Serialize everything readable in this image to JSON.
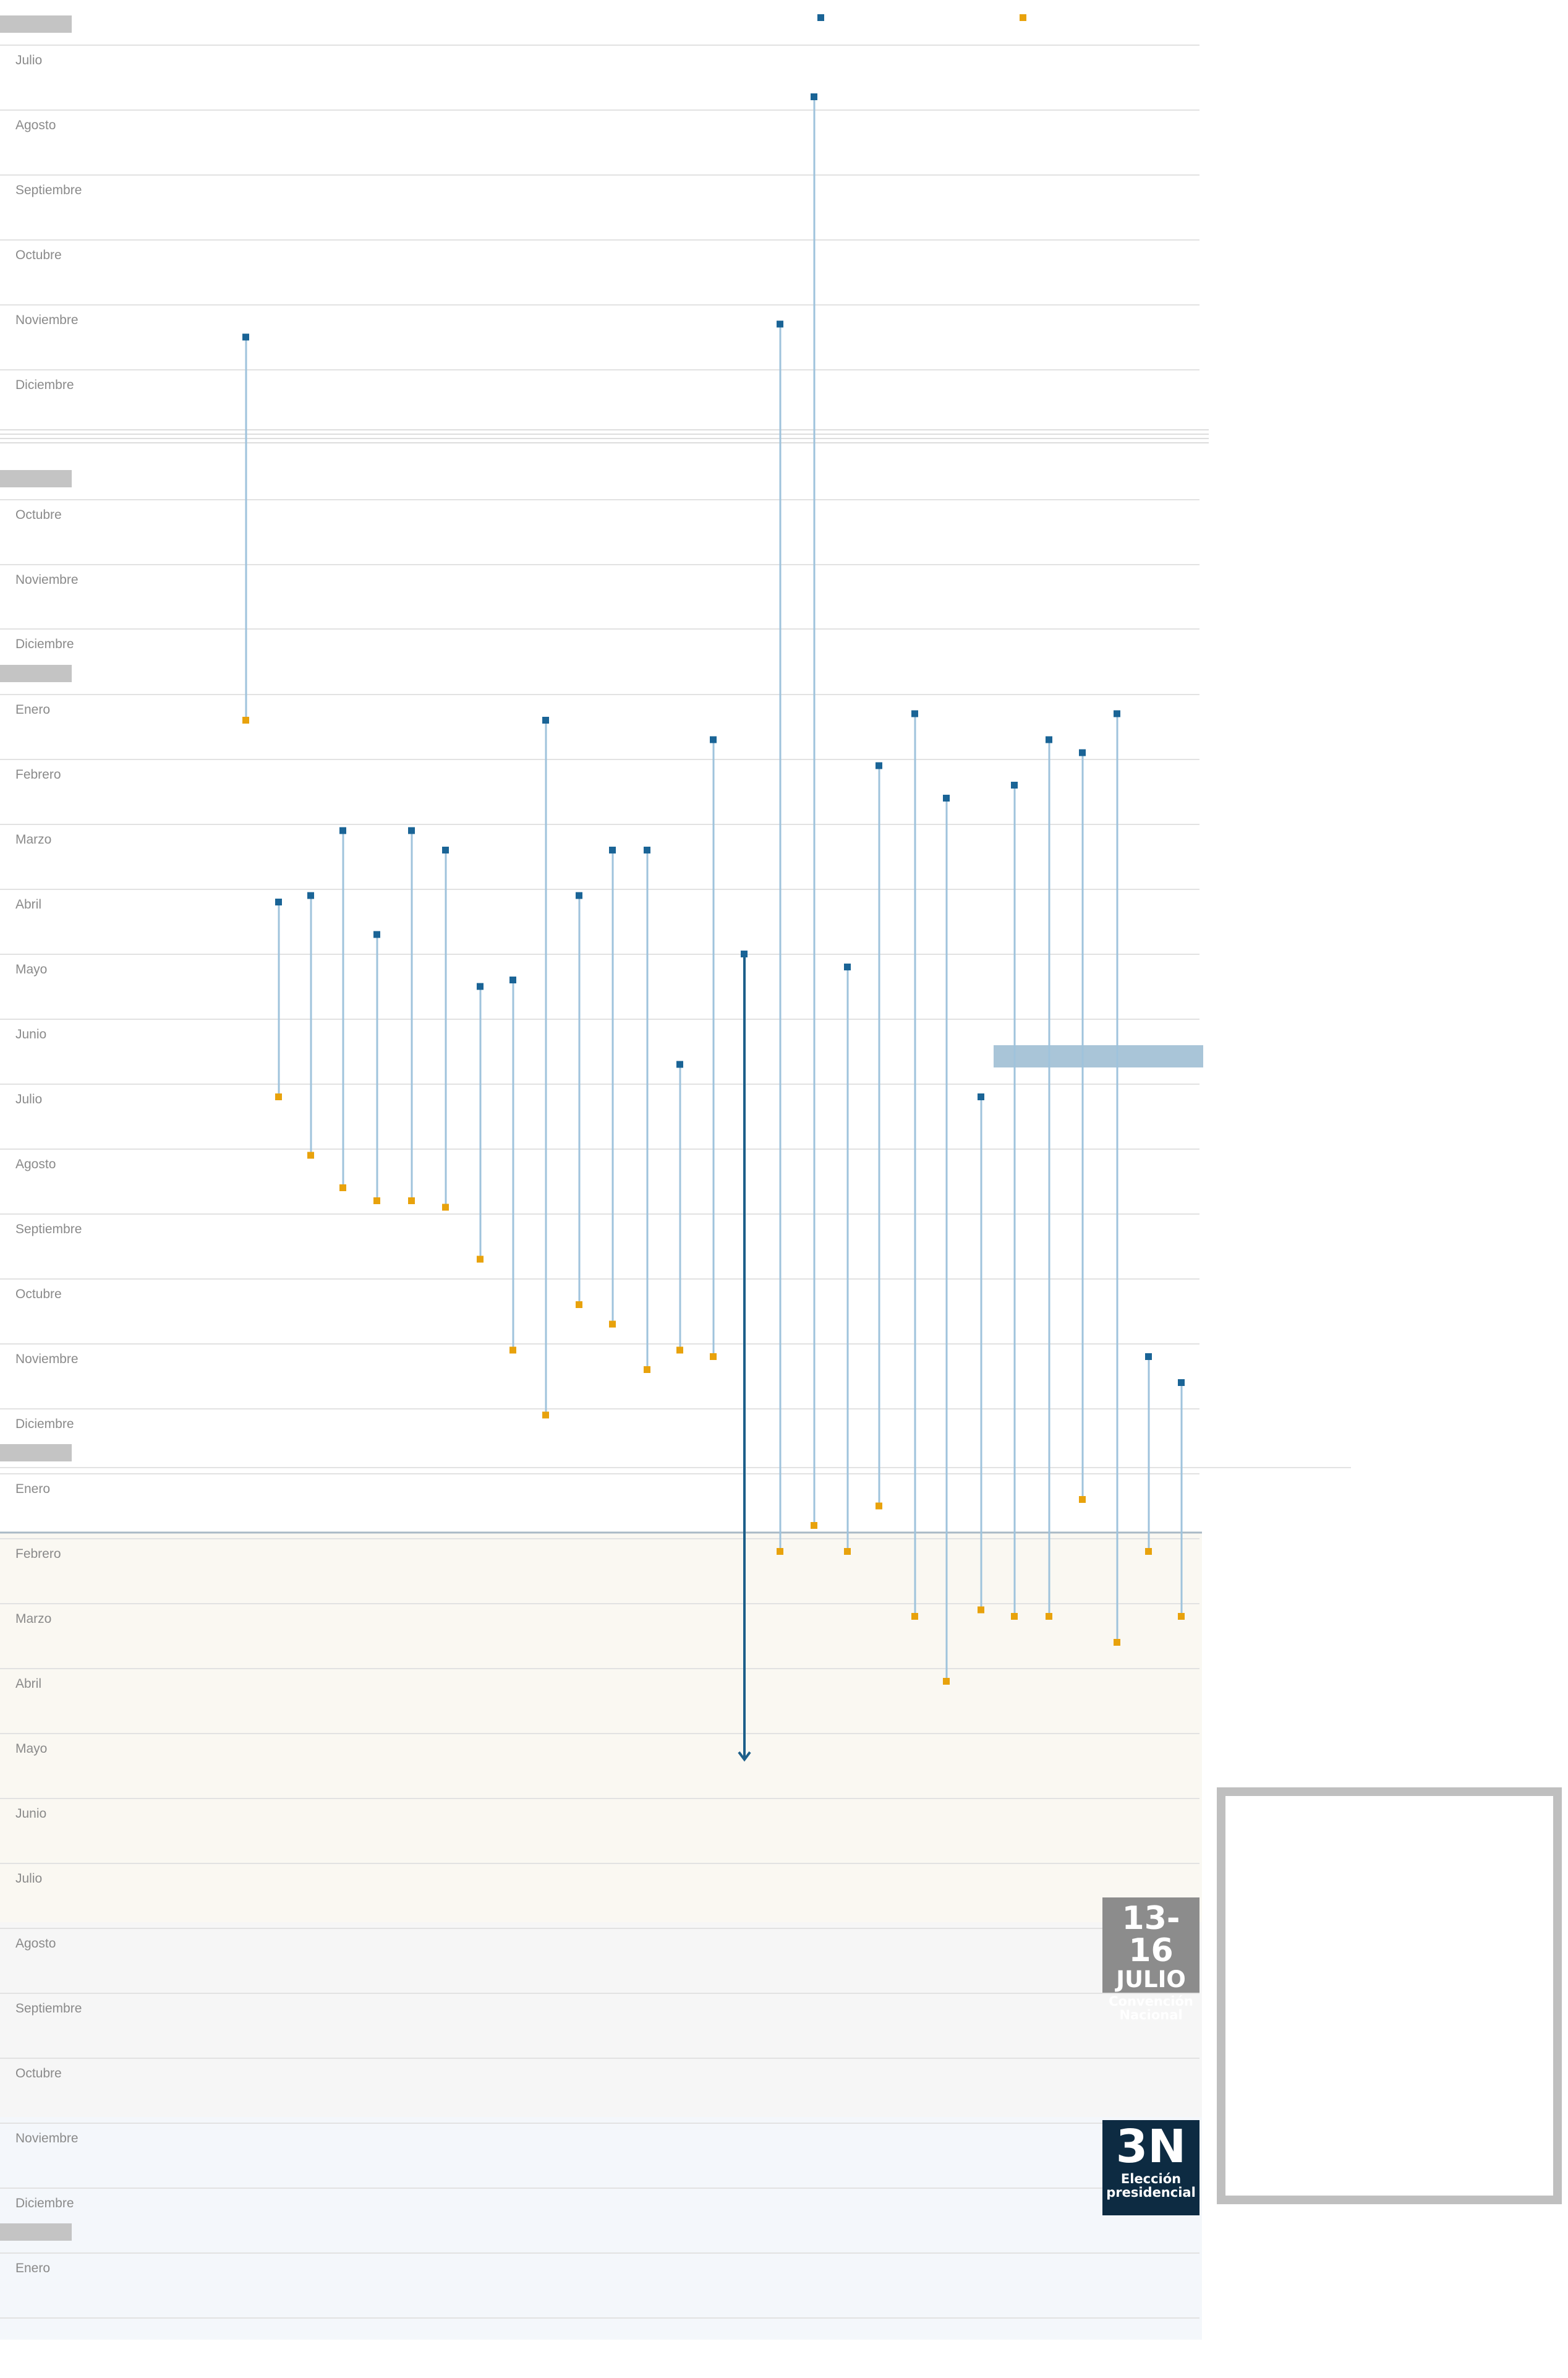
{
  "colors": {
    "announce": "#1a6496",
    "withdraw": "#e8a20c",
    "stem": "#9fc3dc",
    "stem_active": "#1d5f8a",
    "grid": "#e2e2e2",
    "year_tab": "#c4c4c4",
    "highlight_bar": "#a9c5d8",
    "primary_band": "#faf8f2",
    "late_band": "#f6f6f6",
    "final_band": "#f4f7fb"
  },
  "top_legend": [
    {
      "symbol": "square",
      "color": "#1a6496"
    },
    {
      "symbol": "square",
      "color": "#e8a20c"
    }
  ],
  "month_rows": [
    "Julio",
    "Agosto",
    "Septiembre",
    "Octubre",
    "Noviembre",
    "Diciembre",
    "Octubre",
    "Noviembre",
    "Diciembre",
    "Enero",
    "Febrero",
    "Marzo",
    "Abril",
    "Mayo",
    "Junio",
    "Julio",
    "Agosto",
    "Septiembre",
    "Octubre",
    "Noviembre",
    "Diciembre",
    "Enero",
    "Febrero",
    "Marzo",
    "Abril",
    "Mayo",
    "Junio",
    "Julio",
    "Agosto",
    "Septiembre",
    "Octubre",
    "Noviembre",
    "Diciembre",
    "Enero"
  ],
  "events": {
    "convention": {
      "dates": "13-16",
      "month": "JULIO",
      "label": "Convención Nacional"
    },
    "election": {
      "code": "3N",
      "label": "Elección presidencial"
    }
  },
  "chart_data": {
    "type": "timeline",
    "y_axis": "month rows (index into month_rows, fractional positions within a month)",
    "series": [
      {
        "name": "",
        "marker": "square",
        "color": "#1a6496"
      },
      {
        "name": "",
        "marker": "square",
        "color": "#e8a20c"
      }
    ],
    "candidates": [
      {
        "start": 4.5,
        "end": 9.4
      },
      {
        "start": 12.2,
        "end": 15.2
      },
      {
        "start": 12.1,
        "end": 16.1
      },
      {
        "start": 11.1,
        "end": 16.6
      },
      {
        "start": 12.7,
        "end": 16.8
      },
      {
        "start": 11.1,
        "end": 16.8
      },
      {
        "start": 11.4,
        "end": 16.9
      },
      {
        "start": 13.5,
        "end": 17.7
      },
      {
        "start": 13.4,
        "end": 19.1
      },
      {
        "start": 9.4,
        "end": 20.1
      },
      {
        "start": 12.1,
        "end": 18.4
      },
      {
        "start": 11.4,
        "end": 18.7
      },
      {
        "start": 11.4,
        "end": 19.4
      },
      {
        "start": 14.7,
        "end": 19.1
      },
      {
        "start": 9.7,
        "end": 19.2
      },
      {
        "start": 13.0,
        "end": 25.4,
        "active": true
      },
      {
        "start": 4.3,
        "end": 22.2
      },
      {
        "start": 0.8,
        "end": 21.8
      },
      {
        "start": 13.2,
        "end": 22.2
      },
      {
        "start": 10.1,
        "end": 21.5
      },
      {
        "start": 9.3,
        "end": 23.2
      },
      {
        "start": 10.6,
        "end": 24.2
      },
      {
        "start": 15.2,
        "end": 23.1
      },
      {
        "start": 10.4,
        "end": 23.2
      },
      {
        "start": 9.7,
        "end": 23.2
      },
      {
        "start": 9.9,
        "end": 21.4
      },
      {
        "start": 9.3,
        "end": 23.6
      },
      {
        "start": 19.2,
        "end": 22.2
      },
      {
        "start": 19.6,
        "end": 23.2
      }
    ]
  }
}
